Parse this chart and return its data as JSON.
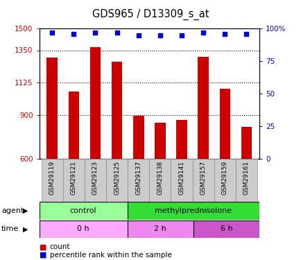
{
  "title": "GDS965 / D13309_s_at",
  "samples": [
    "GSM29119",
    "GSM29121",
    "GSM29123",
    "GSM29125",
    "GSM29137",
    "GSM29138",
    "GSM29141",
    "GSM29157",
    "GSM29159",
    "GSM29161"
  ],
  "counts": [
    1300,
    1065,
    1370,
    1270,
    895,
    850,
    870,
    1305,
    1085,
    820
  ],
  "percentile_ranks": [
    97,
    96,
    97,
    97,
    95,
    95,
    95,
    97,
    96,
    96
  ],
  "ylim_left": [
    600,
    1500
  ],
  "ylim_right": [
    0,
    100
  ],
  "yticks_left": [
    600,
    900,
    1125,
    1350,
    1500
  ],
  "yticks_right": [
    0,
    25,
    50,
    75,
    100
  ],
  "grid_lines": [
    900,
    1125,
    1350
  ],
  "bar_color": "#cc0000",
  "dot_color": "#0000cc",
  "agent_groups": [
    {
      "label": "control",
      "start": 0,
      "end": 4,
      "color": "#99ff99"
    },
    {
      "label": "methylprednisolone",
      "start": 4,
      "end": 10,
      "color": "#33dd33"
    }
  ],
  "time_groups": [
    {
      "label": "0 h",
      "start": 0,
      "end": 4,
      "color": "#ffaaff"
    },
    {
      "label": "2 h",
      "start": 4,
      "end": 7,
      "color": "#ee88ee"
    },
    {
      "label": "6 h",
      "start": 7,
      "end": 10,
      "color": "#cc55cc"
    }
  ],
  "legend_count_label": "count",
  "legend_percentile_label": "percentile rank within the sample",
  "bar_width": 0.5,
  "agent_label": "agent",
  "time_label": "time",
  "bar_color_legend": "#cc0000",
  "dot_color_legend": "#0000cc",
  "tick_label_color_left": "#cc0000",
  "tick_label_color_right": "#0000cc"
}
